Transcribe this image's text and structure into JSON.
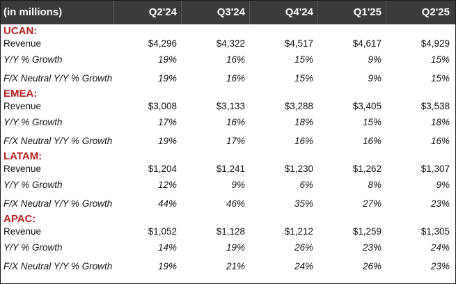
{
  "header": {
    "label": "(in millions)",
    "periods": [
      "Q2'24",
      "Q3'24",
      "Q4'24",
      "Q1'25",
      "Q2'25"
    ]
  },
  "regions": [
    {
      "name": "UCAN:",
      "rows": [
        {
          "label": "Revenue",
          "values": [
            "$4,296",
            "$4,322",
            "$4,517",
            "$4,617",
            "$4,929"
          ]
        },
        {
          "label": "Y/Y % Growth",
          "values": [
            "19%",
            "16%",
            "15%",
            "9%",
            "15%"
          ]
        },
        {
          "label": "F/X Neutral Y/Y % Growth",
          "values": [
            "19%",
            "16%",
            "15%",
            "9%",
            "15%"
          ]
        }
      ]
    },
    {
      "name": "EMEA:",
      "rows": [
        {
          "label": "Revenue",
          "values": [
            "$3,008",
            "$3,133",
            "$3,288",
            "$3,405",
            "$3,538"
          ]
        },
        {
          "label": "Y/Y % Growth",
          "values": [
            "17%",
            "16%",
            "18%",
            "15%",
            "18%"
          ]
        },
        {
          "label": "F/X Neutral Y/Y % Growth",
          "values": [
            "19%",
            "17%",
            "16%",
            "16%",
            "16%"
          ]
        }
      ]
    },
    {
      "name": "LATAM:",
      "rows": [
        {
          "label": "Revenue",
          "values": [
            "$1,204",
            "$1,241",
            "$1,230",
            "$1,262",
            "$1,307"
          ]
        },
        {
          "label": "Y/Y % Growth",
          "values": [
            "12%",
            "9%",
            "6%",
            "8%",
            "9%"
          ]
        },
        {
          "label": "F/X Neutral Y/Y % Growth",
          "values": [
            "44%",
            "46%",
            "35%",
            "27%",
            "23%"
          ]
        }
      ]
    },
    {
      "name": "APAC:",
      "rows": [
        {
          "label": "Revenue",
          "values": [
            "$1,052",
            "$1,128",
            "$1,212",
            "$1,259",
            "$1,305"
          ]
        },
        {
          "label": "Y/Y % Growth",
          "values": [
            "14%",
            "19%",
            "26%",
            "23%",
            "24%"
          ]
        },
        {
          "label": "F/X Neutral Y/Y % Growth",
          "values": [
            "19%",
            "21%",
            "24%",
            "26%",
            "23%"
          ]
        }
      ]
    }
  ],
  "colors": {
    "header_bg": "#3b3b3b",
    "header_text": "#ffffff",
    "region_text": "#b41f1f"
  }
}
